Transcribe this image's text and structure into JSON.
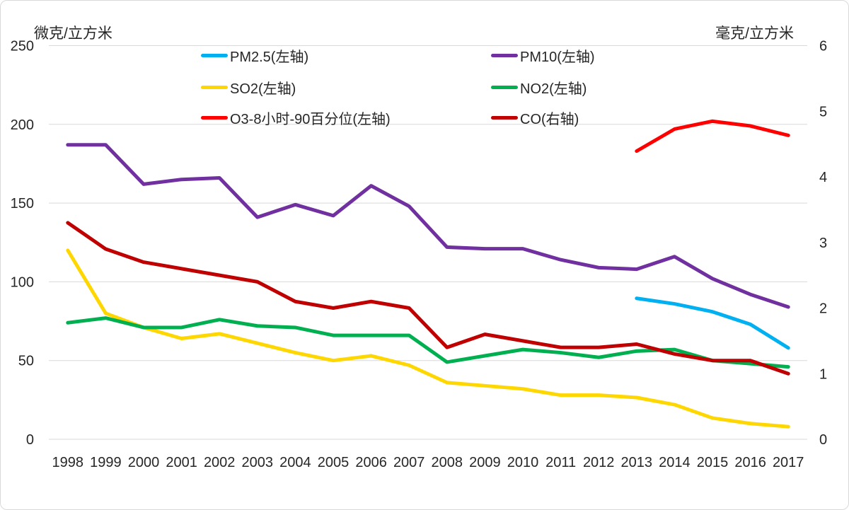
{
  "chart_data": {
    "type": "line",
    "title": "",
    "grid": true,
    "legend_position": "top",
    "gridline_color": "#d9d9d9",
    "text_color": "#262626",
    "x": [
      1998,
      1999,
      2000,
      2001,
      2002,
      2003,
      2004,
      2005,
      2006,
      2007,
      2008,
      2009,
      2010,
      2011,
      2012,
      2013,
      2014,
      2015,
      2016,
      2017
    ],
    "left_axis": {
      "label": "微克/立方米",
      "min": 0,
      "max": 250,
      "step": 50,
      "ticks": [
        0,
        50,
        100,
        150,
        200,
        250
      ]
    },
    "right_axis": {
      "label": "毫克/立方米",
      "min": 0,
      "max": 6,
      "step": 1,
      "ticks": [
        0,
        1,
        2,
        3,
        4,
        5,
        6
      ]
    },
    "series": [
      {
        "name": "PM2.5(左轴)",
        "axis": "left",
        "color": "#00b0f0",
        "values": [
          null,
          null,
          null,
          null,
          null,
          null,
          null,
          null,
          null,
          null,
          null,
          null,
          null,
          null,
          null,
          89.5,
          86,
          81,
          73,
          58
        ]
      },
      {
        "name": "PM10(左轴)",
        "axis": "left",
        "color": "#7030a0",
        "values": [
          187,
          187,
          162,
          165,
          166,
          141,
          149,
          142,
          161,
          148,
          122,
          121,
          121,
          114,
          109,
          108,
          116,
          102,
          92,
          84
        ]
      },
      {
        "name": "SO2(左轴)",
        "axis": "left",
        "color": "#ffd700",
        "values": [
          120,
          80,
          71,
          64,
          67,
          61,
          55,
          50,
          53,
          47,
          36,
          34,
          32,
          28,
          28,
          26.5,
          22,
          13.5,
          10,
          8
        ]
      },
      {
        "name": "NO2(左轴)",
        "axis": "left",
        "color": "#00b050",
        "values": [
          74,
          77,
          71,
          71,
          76,
          72,
          71,
          66,
          66,
          66,
          49,
          53,
          57,
          55,
          52,
          56,
          57,
          50,
          48,
          46
        ]
      },
      {
        "name": "O3-8小时-90百分位(左轴)",
        "axis": "left",
        "color": "#ff0000",
        "values": [
          null,
          null,
          null,
          null,
          null,
          null,
          null,
          null,
          null,
          null,
          null,
          null,
          null,
          null,
          null,
          183,
          197,
          202,
          199,
          193
        ]
      },
      {
        "name": "CO(右轴)",
        "axis": "right",
        "color": "#c00000",
        "values": [
          3.3,
          2.9,
          2.7,
          2.6,
          2.5,
          2.4,
          2.1,
          2.0,
          2.1,
          2.0,
          1.4,
          1.6,
          1.5,
          1.4,
          1.4,
          1.45,
          1.3,
          1.2,
          1.2,
          1.0
        ]
      }
    ]
  }
}
